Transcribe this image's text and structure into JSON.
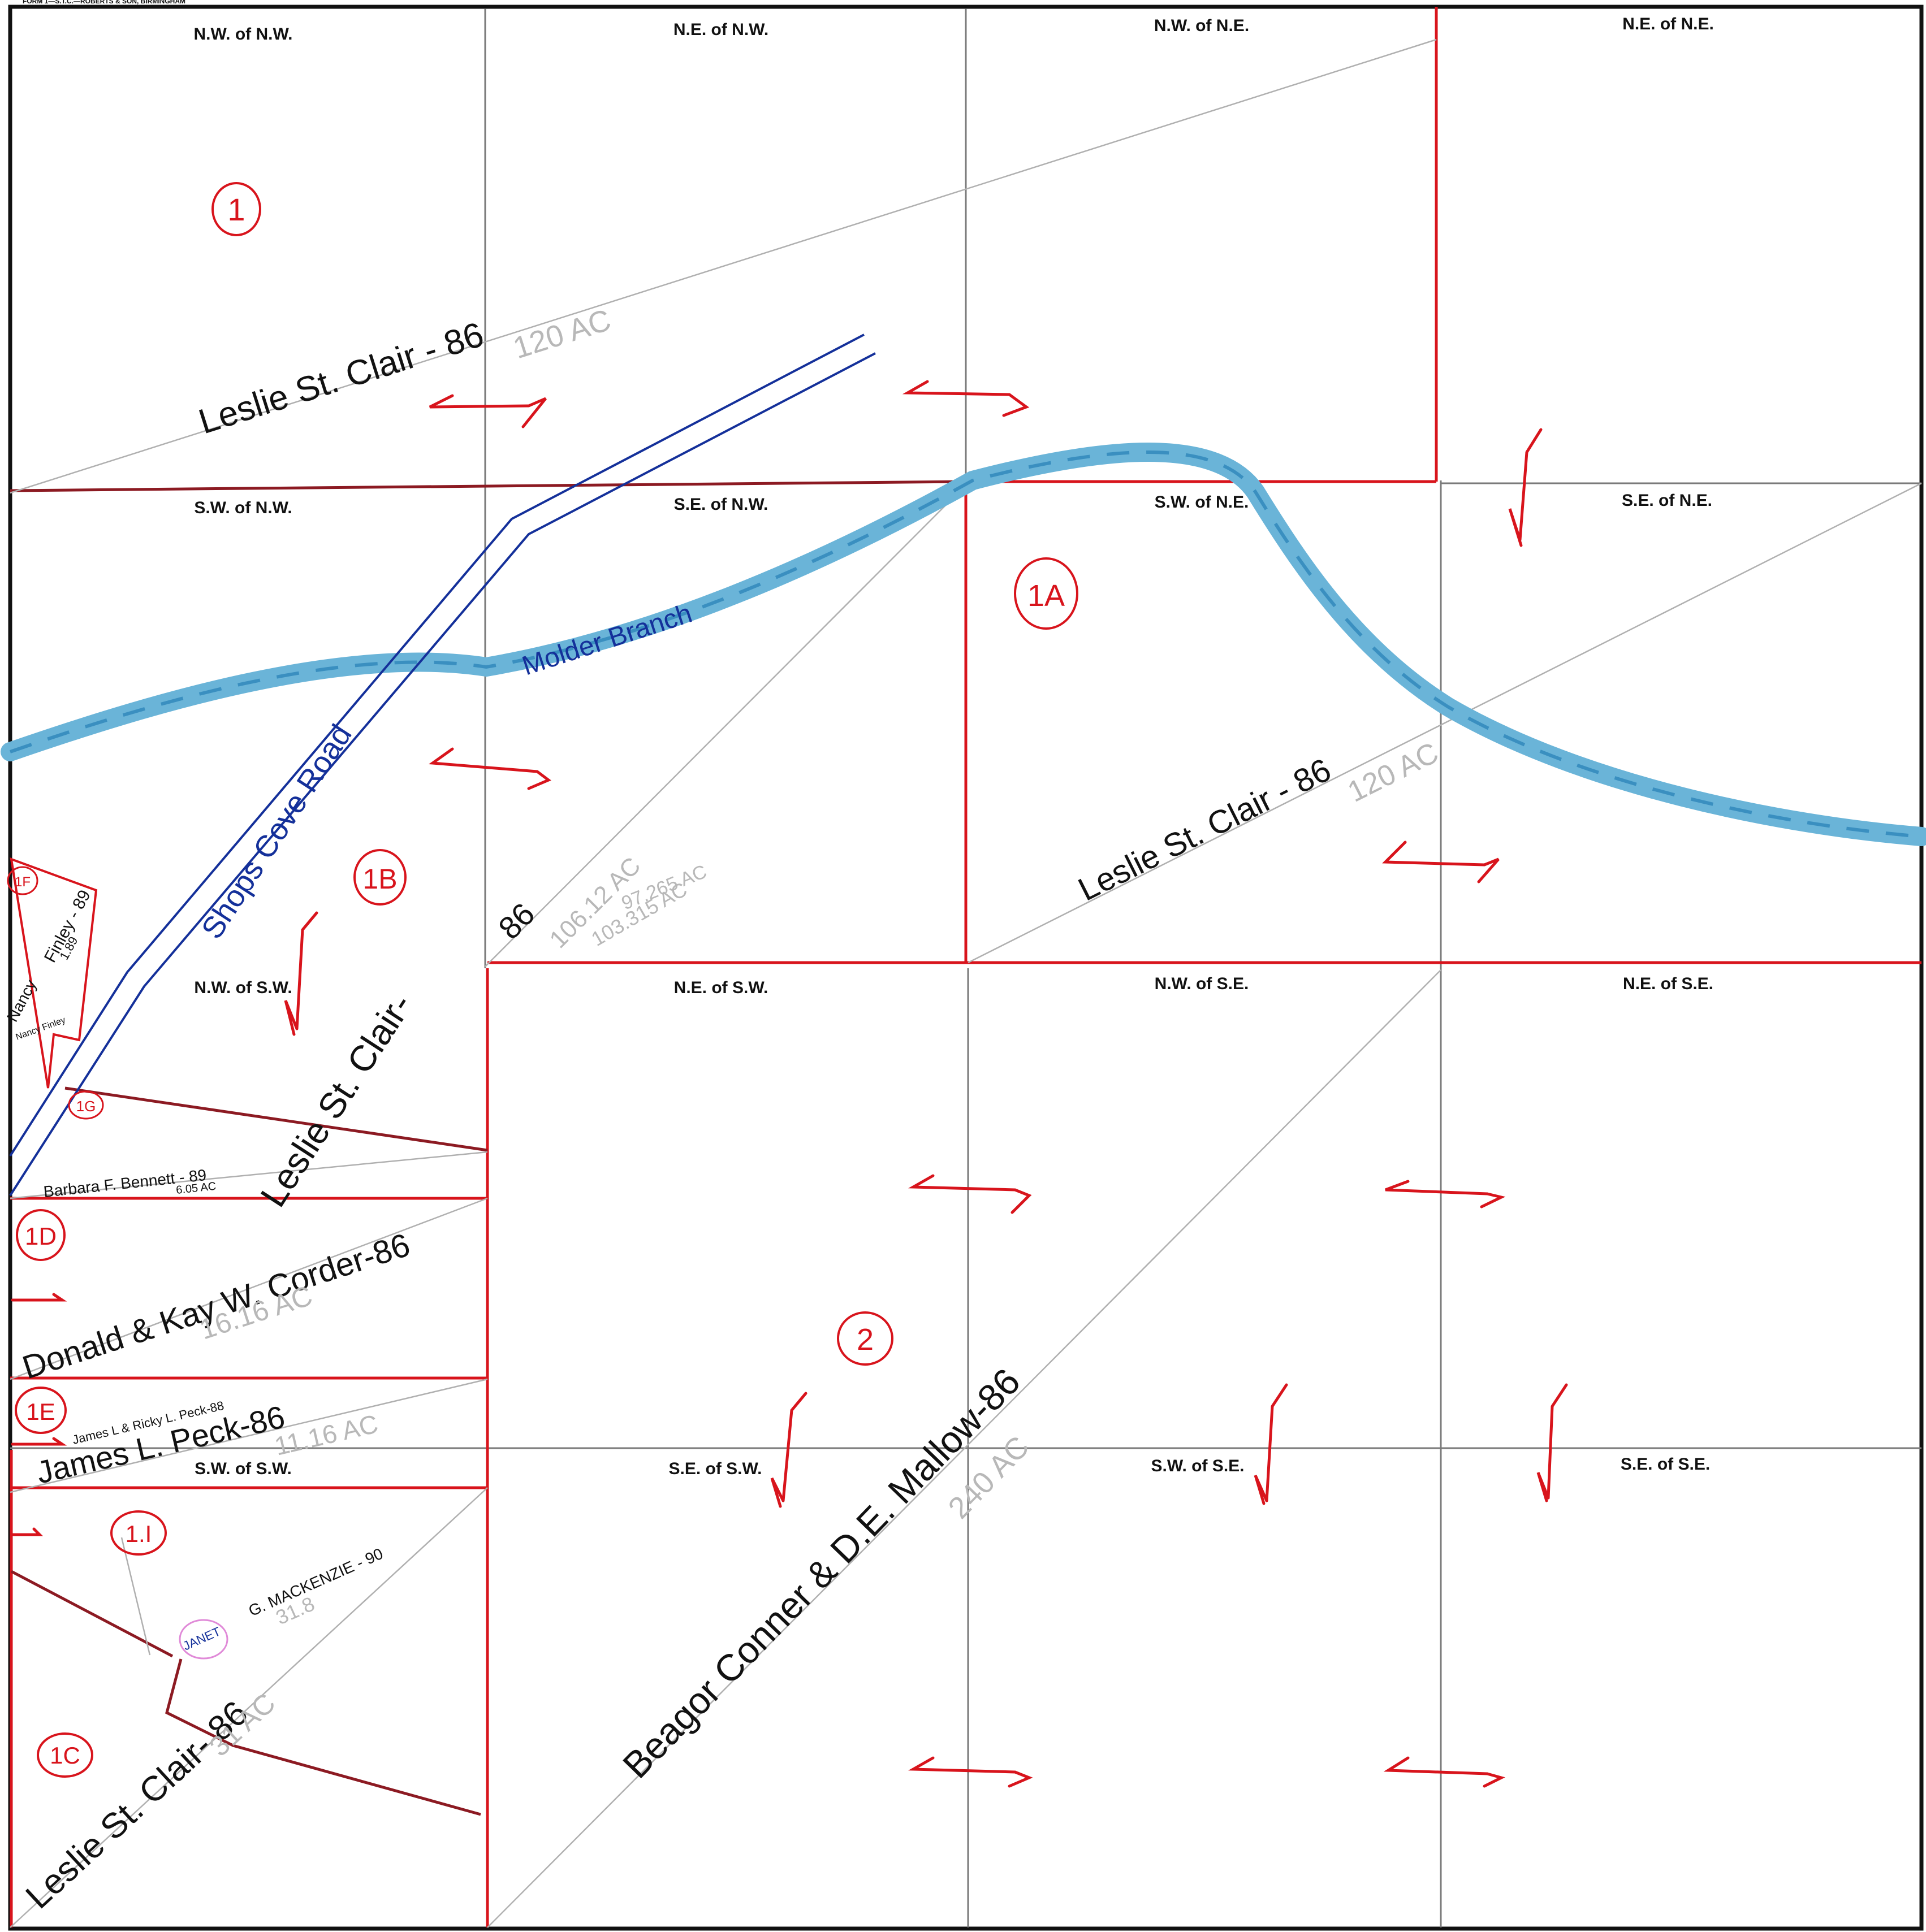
{
  "form_header": "FORM 1—S.T.C.—ROBERTS & SON, BIRMINGHAM",
  "quarters": {
    "nw_of_nw": "N.W. of N.W.",
    "ne_of_nw": "N.E. of N.W.",
    "nw_of_ne": "N.W. of N.E.",
    "ne_of_ne": "N.E. of N.E.",
    "sw_of_nw": "S.W. of N.W.",
    "se_of_nw": "S.E. of N.W.",
    "sw_of_ne": "S.W. of N.E.",
    "se_of_ne": "S.E. of N.E.",
    "nw_of_sw": "N.W. of S.W.",
    "ne_of_sw": "N.E. of S.W.",
    "nw_of_se": "N.W. of S.E.",
    "ne_of_se": "N.E. of S.E.",
    "sw_of_sw": "S.W. of S.W.",
    "se_of_sw": "S.E. of S.W.",
    "sw_of_se": "S.W. of S.E.",
    "se_of_se": "S.E. of S.E."
  },
  "parcel_ids": {
    "p1": "1",
    "p1a": "1A",
    "p1b": "1B",
    "p1c": "1C",
    "p1d": "1D",
    "p1e": "1E",
    "p1f": "1F",
    "p1g": "1G",
    "p1i": "1.I",
    "p2": "2"
  },
  "owners": {
    "leslie_nw": "Leslie    St. Clair - 86",
    "leslie_ne": "Leslie    St. Clair - 86",
    "leslie_mid": "Leslie St. Clair-",
    "leslie_mid_year": "86",
    "leslie_sw": "Leslie  St. Clair- 86",
    "corder": "Donald & Kay W. Corder-86",
    "peck": "James L. Peck-86",
    "peck_small": "James L & Ricky L. Peck-88",
    "bennett": "Barbara F. Bennett - 89",
    "mackenzie": "G. MACKENZIE - 90",
    "janet": "JANET",
    "conner": "Beagor Conner & D.E. Mallow-86",
    "finley": "Finley - 89",
    "nancy": "Nancy",
    "finley_small": "Nancy Finley"
  },
  "acreages": {
    "nw_120": "120 AC",
    "ne_120": "120 AC",
    "mid_106": "106.12 AC",
    "mid_103": "103.315 AC",
    "mid_97": "97.265 AC",
    "corder_16": "16.16 AC",
    "peck_11": "11.16 AC",
    "bennett_6": "6.05 AC",
    "mackenzie_31": "31.8",
    "sw_31": "31 AC",
    "conner_240": "240 AC",
    "finley_189": "1.89"
  },
  "features": {
    "creek": "Molder Branch",
    "road": "Shops Cove Road"
  },
  "colors": {
    "parcel_red": "#d8141c",
    "dark_red": "#8c1a22",
    "road_blue": "#14309a",
    "creek_blue": "#6ab4d8",
    "grid_gray": "#7a7a7a"
  }
}
